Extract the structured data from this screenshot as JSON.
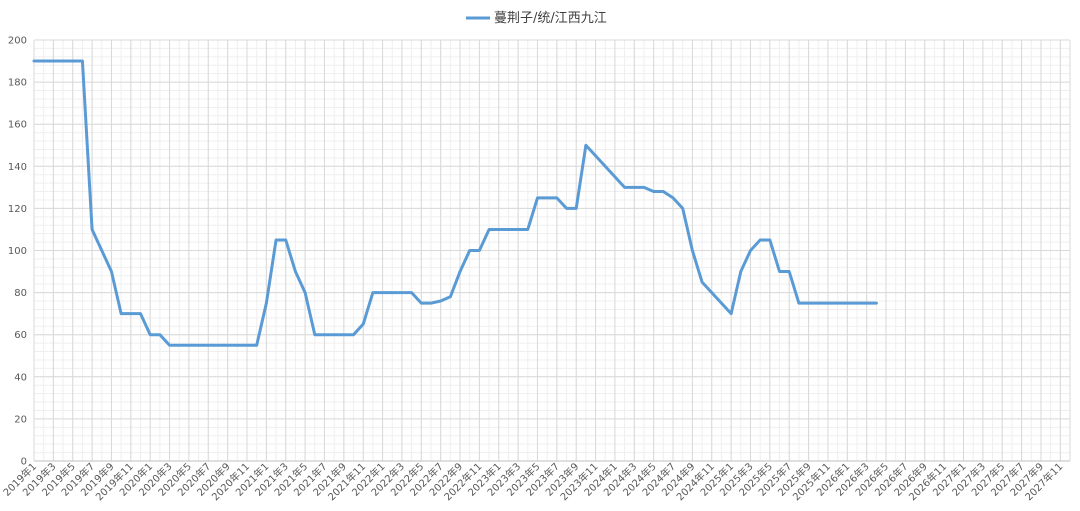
{
  "chart_data": {
    "type": "line",
    "title": "",
    "xlabel": "",
    "ylabel": "",
    "ylim": [
      0,
      200
    ],
    "yticks": [
      0,
      20,
      40,
      60,
      80,
      100,
      120,
      140,
      160,
      180,
      200
    ],
    "xlim": [
      "2019-01",
      "2027-12"
    ],
    "x_tick_labels": [
      "2019年1",
      "2019年3",
      "2019年5",
      "2019年7",
      "2019年9",
      "2019年11",
      "2020年1",
      "2020年3",
      "2020年5",
      "2020年7",
      "2020年9",
      "2020年11",
      "2021年1",
      "2021年3",
      "2021年5",
      "2021年7",
      "2021年9",
      "2021年11",
      "2022年1",
      "2022年3",
      "2022年5",
      "2022年7",
      "2022年9",
      "2022年11",
      "2023年1",
      "2023年3",
      "2023年5",
      "2023年7",
      "2023年9",
      "2023年11",
      "2024年1",
      "2024年3",
      "2024年5",
      "2024年7",
      "2024年9",
      "2024年11",
      "2025年1",
      "2025年3",
      "2025年5",
      "2025年7",
      "2025年9",
      "2025年11",
      "2026年1",
      "2026年3",
      "2026年5",
      "2026年7",
      "2026年9",
      "2026年11",
      "2027年1",
      "2027年3",
      "2027年5",
      "2027年7",
      "2027年9",
      "2027年11"
    ],
    "grid": true,
    "legend_position": "top-center",
    "series": [
      {
        "name": "蔓荆子/统/江西九江",
        "color": "#5b9bd5",
        "points": [
          [
            "2019-01",
            190
          ],
          [
            "2019-06",
            190
          ],
          [
            "2019-07",
            110
          ],
          [
            "2019-09",
            90
          ],
          [
            "2019-10",
            70
          ],
          [
            "2019-12",
            70
          ],
          [
            "2020-01",
            60
          ],
          [
            "2020-02",
            60
          ],
          [
            "2020-03",
            55
          ],
          [
            "2020-12",
            55
          ],
          [
            "2021-01",
            75
          ],
          [
            "2021-02",
            105
          ],
          [
            "2021-03",
            105
          ],
          [
            "2021-04",
            90
          ],
          [
            "2021-05",
            80
          ],
          [
            "2021-06",
            60
          ],
          [
            "2021-10",
            60
          ],
          [
            "2021-11",
            65
          ],
          [
            "2021-12",
            80
          ],
          [
            "2022-04",
            80
          ],
          [
            "2022-05",
            75
          ],
          [
            "2022-06",
            75
          ],
          [
            "2022-07",
            76
          ],
          [
            "2022-08",
            78
          ],
          [
            "2022-09",
            90
          ],
          [
            "2022-10",
            100
          ],
          [
            "2022-11",
            100
          ],
          [
            "2022-12",
            110
          ],
          [
            "2023-04",
            110
          ],
          [
            "2023-05",
            125
          ],
          [
            "2023-07",
            125
          ],
          [
            "2023-08",
            120
          ],
          [
            "2023-09",
            120
          ],
          [
            "2023-10",
            150
          ],
          [
            "2024-02",
            130
          ],
          [
            "2024-04",
            130
          ],
          [
            "2024-05",
            128
          ],
          [
            "2024-06",
            128
          ],
          [
            "2024-07",
            125
          ],
          [
            "2024-08",
            120
          ],
          [
            "2024-09",
            100
          ],
          [
            "2024-10",
            85
          ],
          [
            "2025-01",
            70
          ],
          [
            "2025-02",
            90
          ],
          [
            "2025-03",
            100
          ],
          [
            "2025-04",
            105
          ],
          [
            "2025-05",
            105
          ],
          [
            "2025-06",
            90
          ],
          [
            "2025-07",
            90
          ],
          [
            "2025-08",
            75
          ],
          [
            "2026-04",
            75
          ]
        ]
      }
    ]
  }
}
